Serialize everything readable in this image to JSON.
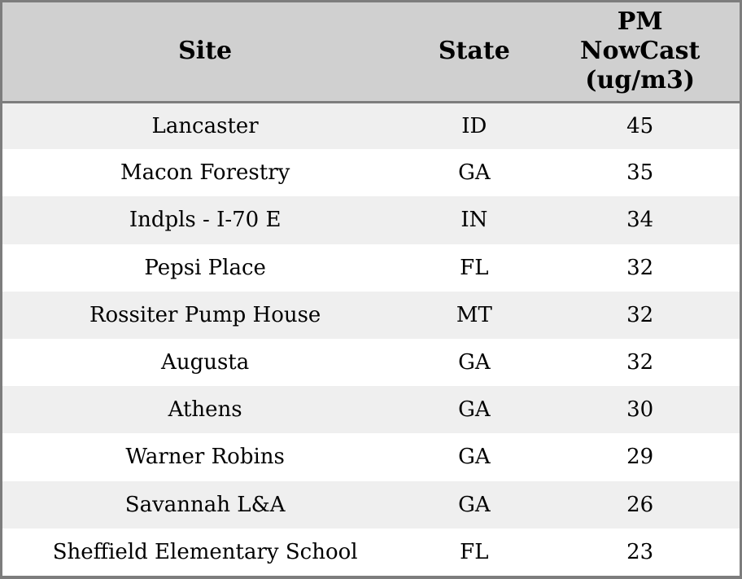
{
  "colors": {
    "header_bg": "#d0d0d0",
    "row_alt_bg": "#efefef",
    "row_bg": "#ffffff",
    "border": "#7d7d7d",
    "text": "#000000"
  },
  "header": {
    "site": "Site",
    "state": "State",
    "pm": "PM\nNowCast\n(ug/m3)"
  },
  "chart_data": {
    "type": "table",
    "columns": [
      "Site",
      "State",
      "PM NowCast (ug/m3)"
    ],
    "rows": [
      [
        "Lancaster",
        "ID",
        45
      ],
      [
        "Macon Forestry",
        "GA",
        35
      ],
      [
        "Indpls - I-70 E",
        "IN",
        34
      ],
      [
        "Pepsi Place",
        "FL",
        32
      ],
      [
        "Rossiter Pump House",
        "MT",
        32
      ],
      [
        "Augusta",
        "GA",
        32
      ],
      [
        "Athens",
        "GA",
        30
      ],
      [
        "Warner Robins",
        "GA",
        29
      ],
      [
        "Savannah L&A",
        "GA",
        26
      ],
      [
        "Sheffield Elementary School",
        "FL",
        23
      ]
    ],
    "layout": {
      "striped": true,
      "stripe_pattern": "odd-rows-grey",
      "header_position": "top",
      "grid": "header-separator-only"
    }
  }
}
